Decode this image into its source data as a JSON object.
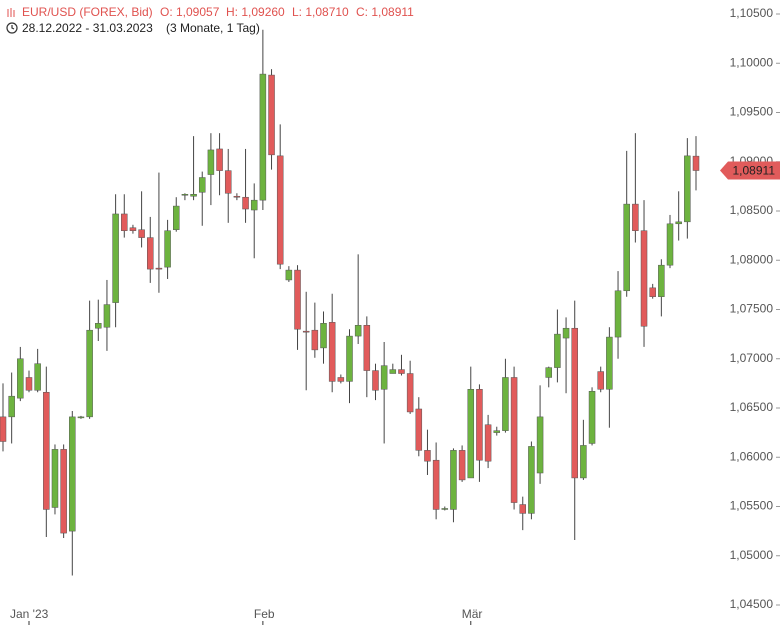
{
  "chart_data": {
    "type": "candlestick",
    "title": "EUR/USD (FOREX, Bid)",
    "quote": [
      {
        "value": 1.09057,
        "label": "O: 1,09057"
      },
      {
        "value": 1.0926,
        "label": "H: 1,09260"
      },
      {
        "value": 1.0871,
        "label": "L: 1,08710"
      },
      {
        "value": 1.08911,
        "label": "C: 1,08911"
      }
    ],
    "date_range": "28.12.2022 - 31.03.2023",
    "period": "(3 Monate, 1 Tag)",
    "last_price": {
      "value": 1.08911,
      "label": "1,08911"
    },
    "up_color": "#6db33f",
    "down_color": "#e15b5b",
    "header_color": "#e0524f",
    "categories": [
      null,
      null,
      null,
      "Jan '23",
      null,
      null,
      null,
      null,
      null,
      null,
      null,
      null,
      null,
      null,
      null,
      null,
      null,
      null,
      null,
      null,
      null,
      null,
      null,
      null,
      null,
      null,
      null,
      null,
      null,
      null,
      "Feb",
      null,
      null,
      null,
      null,
      null,
      null,
      null,
      null,
      null,
      null,
      null,
      null,
      null,
      null,
      null,
      null,
      null,
      null,
      null,
      null,
      null,
      null,
      null,
      "Mär",
      null,
      null,
      null,
      null,
      null,
      null,
      null,
      null,
      null,
      null,
      null,
      null,
      null,
      null,
      null,
      null,
      null,
      null,
      null,
      null,
      null,
      null,
      null,
      null,
      null,
      null
    ],
    "open": [
      1.0641,
      1.0641,
      1.066,
      1.0681,
      1.0668,
      1.0666,
      1.0549,
      1.0608,
      1.0525,
      1.064,
      1.0641,
      1.0731,
      1.0732,
      1.0757,
      1.0847,
      1.0833,
      1.0831,
      1.0823,
      1.0792,
      1.0793,
      1.0831,
      1.0866,
      1.0865,
      1.0869,
      1.0887,
      1.0913,
      1.0891,
      1.0865,
      1.0864,
      1.0851,
      1.0861,
      1.0988,
      1.0906,
      1.078,
      1.079,
      1.0728,
      1.0729,
      1.0711,
      1.0737,
      1.0681,
      1.0677,
      1.0723,
      1.0734,
      1.0688,
      1.0669,
      1.0685,
      1.0689,
      1.0685,
      1.0649,
      1.0607,
      1.0597,
      1.0547,
      1.0547,
      1.0607,
      1.0579,
      1.0669,
      1.0633,
      1.0625,
      1.0627,
      1.0681,
      1.0552,
      1.0543,
      1.0584,
      1.0681,
      1.0691,
      1.0721,
      1.0731,
      1.0579,
      1.0614,
      1.0687,
      1.0669,
      1.0722,
      1.0769,
      1.0857,
      1.083,
      1.0772,
      1.0763,
      1.0795,
      1.0837,
      1.0839,
      1.09057
    ],
    "high": [
      1.0675,
      1.0686,
      1.0712,
      1.0688,
      1.071,
      1.0692,
      1.0613,
      1.0613,
      1.0647,
      1.0642,
      1.0759,
      1.076,
      1.078,
      1.0867,
      1.0867,
      1.0836,
      1.087,
      1.0844,
      1.0889,
      1.0841,
      1.0864,
      1.0868,
      1.0926,
      1.089,
      1.0929,
      1.0929,
      1.0913,
      1.0868,
      1.0913,
      1.0878,
      1.1034,
      1.0994,
      1.0938,
      1.0794,
      1.0795,
      1.0768,
      1.0757,
      1.0748,
      1.0766,
      1.0684,
      1.073,
      1.0806,
      1.0743,
      1.0695,
      1.0717,
      1.0695,
      1.0704,
      1.0698,
      1.0661,
      1.0628,
      1.0615,
      1.055,
      1.0609,
      1.0612,
      1.0692,
      1.0674,
      1.0643,
      1.0631,
      1.07,
      1.0692,
      1.056,
      1.0616,
      1.0673,
      1.0692,
      1.075,
      1.0742,
      1.0759,
      1.0638,
      1.0671,
      1.0692,
      1.0732,
      1.0789,
      1.0911,
      1.0929,
      1.0861,
      1.0776,
      1.0801,
      1.0846,
      1.087,
      1.0924,
      1.0926
    ],
    "low": [
      1.0606,
      1.0614,
      1.0657,
      1.0666,
      1.0666,
      1.0519,
      1.0542,
      1.0518,
      1.048,
      1.0639,
      1.0639,
      1.0718,
      1.0708,
      1.0732,
      1.0823,
      1.0827,
      1.0813,
      1.0777,
      1.0767,
      1.0781,
      1.0829,
      1.0861,
      1.0861,
      1.0835,
      1.0856,
      1.0866,
      1.0838,
      1.0861,
      1.0838,
      1.0802,
      1.0851,
      1.0892,
      1.0791,
      1.0778,
      1.0709,
      1.0668,
      1.0701,
      1.0695,
      1.0666,
      1.0675,
      1.0655,
      1.0715,
      1.0661,
      1.0658,
      1.0614,
      1.0685,
      1.0683,
      1.0644,
      1.0601,
      1.0582,
      1.0537,
      1.0546,
      1.0534,
      1.0575,
      1.0579,
      1.0575,
      1.0589,
      1.0622,
      1.0625,
      1.0547,
      1.0526,
      1.0537,
      1.0573,
      1.0671,
      1.0676,
      1.0665,
      1.0516,
      1.0577,
      1.0612,
      1.0666,
      1.063,
      1.07,
      1.0763,
      1.0818,
      1.0712,
      1.0761,
      1.0743,
      1.0792,
      1.082,
      1.0822,
      1.0871
    ],
    "close": [
      1.0616,
      1.0662,
      1.07,
      1.0668,
      1.0695,
      1.0547,
      1.0608,
      1.0523,
      1.0641,
      1.0641,
      1.0729,
      1.0736,
      1.0755,
      1.0847,
      1.083,
      1.083,
      1.0823,
      1.0791,
      1.0791,
      1.083,
      1.0855,
      1.0867,
      1.0867,
      1.0884,
      1.0912,
      1.0891,
      1.0868,
      1.0864,
      1.0852,
      1.0861,
      1.0989,
      1.0907,
      1.0796,
      1.079,
      1.073,
      1.0727,
      1.0709,
      1.0736,
      1.0677,
      1.0677,
      1.0723,
      1.0734,
      1.0688,
      1.0668,
      1.0693,
      1.0689,
      1.0685,
      1.0646,
      1.0607,
      1.0596,
      1.0547,
      1.0548,
      1.0607,
      1.0577,
      1.0669,
      1.0597,
      1.0596,
      1.0627,
      1.0681,
      1.0554,
      1.0543,
      1.0611,
      1.0641,
      1.0691,
      1.0725,
      1.0731,
      1.0579,
      1.0612,
      1.0667,
      1.0669,
      1.0722,
      1.0769,
      1.0857,
      1.083,
      1.0733,
      1.0763,
      1.0795,
      1.0837,
      1.0839,
      1.0906,
      1.08911
    ],
    "ylim": [
      1.045,
      1.105
    ],
    "yticks": [
      {
        "value": 1.045,
        "label": "1,04500"
      },
      {
        "value": 1.05,
        "label": "1,05000"
      },
      {
        "value": 1.055,
        "label": "1,05500"
      },
      {
        "value": 1.06,
        "label": "1,06000"
      },
      {
        "value": 1.065,
        "label": "1,06500"
      },
      {
        "value": 1.07,
        "label": "1,07000"
      },
      {
        "value": 1.075,
        "label": "1,07500"
      },
      {
        "value": 1.08,
        "label": "1,08000"
      },
      {
        "value": 1.085,
        "label": "1,08500"
      },
      {
        "value": 1.09,
        "label": "1,09000"
      },
      {
        "value": 1.095,
        "label": "1,09500"
      },
      {
        "value": 1.1,
        "label": "1,10000"
      },
      {
        "value": 1.105,
        "label": "1,10500"
      }
    ]
  }
}
